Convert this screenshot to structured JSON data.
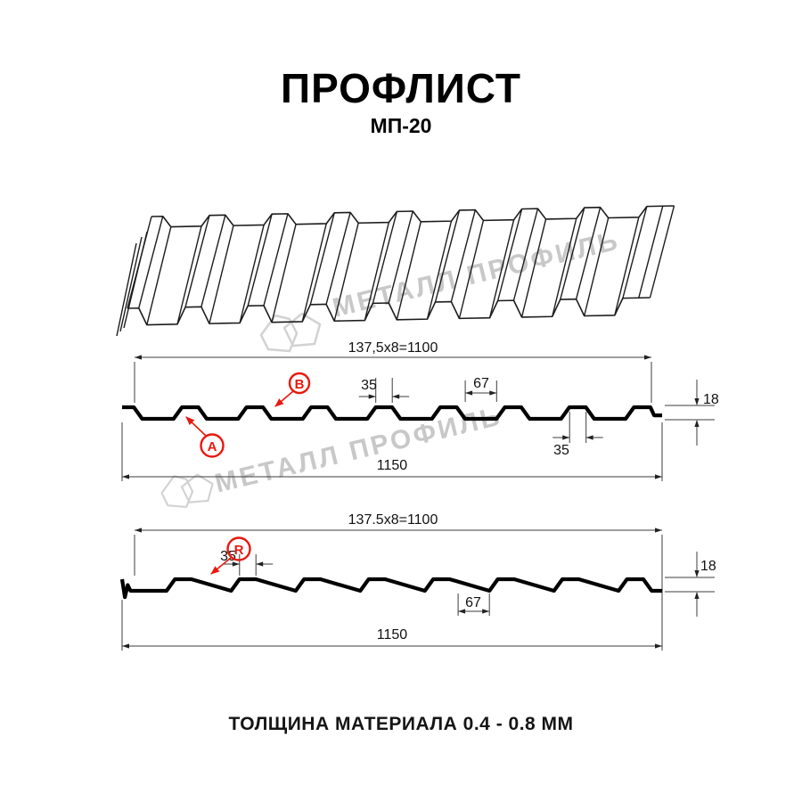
{
  "page": {
    "title": "ПРОФЛИСТ",
    "subtitle": "МП-20",
    "caption": "ТОЛЩИНА МАТЕРИАЛА 0.4 - 0.8 ММ"
  },
  "watermark": {
    "brand": "МЕТАЛЛ ПРОФИЛЬ"
  },
  "section_ab": {
    "cover_width": "137,5x8=1100",
    "crest_width_top": "35",
    "valley_width": "67",
    "crest_width_bottom": "35",
    "profile_height": "18",
    "overall_width": "1150",
    "label_a": "A",
    "label_b": "B"
  },
  "section_r": {
    "cover_width": "137.5x8=1100",
    "crest_width": "35",
    "valley_width": "67",
    "profile_height": "18",
    "overall_width": "1150",
    "label_r": "R"
  },
  "colors": {
    "red": "#e8190e",
    "watermark_text": "#c8c8c8",
    "watermark_logo": "#d2d2d2",
    "profile_line": "#000000",
    "dim_line": "#3c3c3c"
  }
}
